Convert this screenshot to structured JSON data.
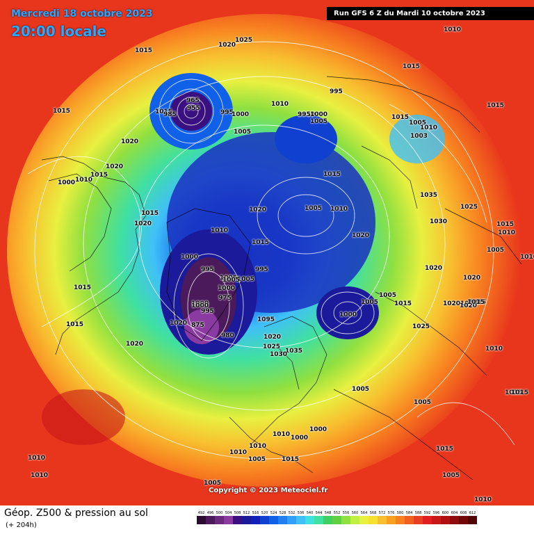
{
  "header": {
    "date": "Mercredi 18 octobre 2023",
    "time": "20:00 locale",
    "run": "Run GFS 6 Z du Mardi 10 octobre 2023"
  },
  "copyright": "Copyright © 2023 Meteociel.fr",
  "footer": {
    "title": "Géop. Z500 & pression au sol",
    "subtitle": "(+ 204h)"
  },
  "scale": {
    "labels": [
      "492",
      "496",
      "500",
      "504",
      "508",
      "512",
      "516",
      "520",
      "524",
      "528",
      "532",
      "536",
      "540",
      "544",
      "548",
      "552",
      "556",
      "560",
      "564",
      "568",
      "572",
      "576",
      "580",
      "584",
      "588",
      "592",
      "596",
      "600",
      "604",
      "608",
      "612"
    ],
    "colors": [
      "#2a0a2e",
      "#4b1a5a",
      "#6a2a7e",
      "#8a3aa0",
      "#3a1080",
      "#1a1a9a",
      "#1020b8",
      "#1040d0",
      "#1060e8",
      "#2080f0",
      "#30a0f8",
      "#40c0f8",
      "#40e0e0",
      "#40e0a0",
      "#40d060",
      "#60d040",
      "#90e040",
      "#c0f040",
      "#e8f040",
      "#f8e030",
      "#f8c030",
      "#f8a020",
      "#f88020",
      "#f06020",
      "#e84020",
      "#e02020",
      "#c81818",
      "#b01010",
      "#900c0c",
      "#700808",
      "#500404"
    ]
  },
  "pressure_labels": [
    "1015",
    "1020",
    "1025",
    "1010",
    "1015",
    "1015",
    "1010",
    "995",
    "1015",
    "995",
    "1000",
    "1005",
    "1010",
    "995",
    "1000",
    "1005",
    "1015",
    "1005",
    "1010",
    "1003",
    "1015",
    "1020",
    "1020",
    "1000",
    "1010",
    "1015",
    "1015",
    "1020",
    "1015",
    "1005",
    "1010",
    "1020",
    "1035",
    "1025",
    "1030",
    "1020",
    "1010",
    "1000",
    "995",
    "1015",
    "1005",
    "1015",
    "1005",
    "1010",
    "1020",
    "1020",
    "1015",
    "995",
    "1005",
    "1000",
    "975",
    "1000",
    "995",
    "1005",
    "1005",
    "1015",
    "1025",
    "1010",
    "1015",
    "1095",
    "980",
    "1020",
    "1025",
    "1035",
    "1030",
    "1020",
    "1005",
    "1005",
    "1015",
    "1010",
    "1000",
    "1000",
    "1010",
    "1010",
    "1005",
    "1015",
    "1015",
    "1005",
    "1010",
    "1010",
    "1005",
    "1010",
    "1010",
    "1015",
    "1015",
    "1015",
    "1020",
    "1020",
    "1015",
    "1020",
    "965",
    "955",
    "985",
    "875",
    "1000",
    "1000",
    "1005"
  ]
}
